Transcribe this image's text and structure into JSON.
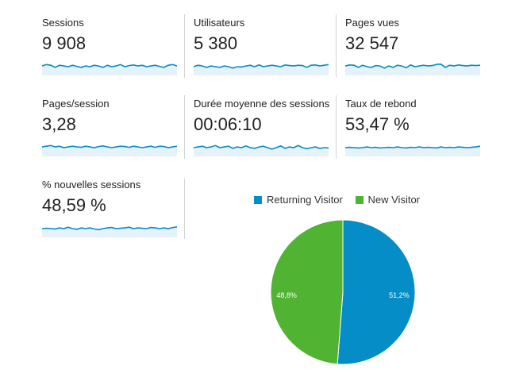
{
  "metrics": [
    {
      "label": "Sessions",
      "value": "9 908",
      "trend": [
        0.55,
        0.65,
        0.6,
        0.45,
        0.6,
        0.55,
        0.5,
        0.6,
        0.52,
        0.45,
        0.55,
        0.5,
        0.6,
        0.55,
        0.45,
        0.6,
        0.5,
        0.55,
        0.65,
        0.5,
        0.58,
        0.62,
        0.55,
        0.6,
        0.5,
        0.55,
        0.6,
        0.52,
        0.45,
        0.6,
        0.65,
        0.55
      ]
    },
    {
      "label": "Utilisateurs",
      "value": "5 380",
      "trend": [
        0.5,
        0.6,
        0.55,
        0.45,
        0.55,
        0.5,
        0.45,
        0.55,
        0.5,
        0.4,
        0.5,
        0.48,
        0.55,
        0.6,
        0.5,
        0.62,
        0.5,
        0.55,
        0.6,
        0.55,
        0.5,
        0.62,
        0.58,
        0.55,
        0.6,
        0.58,
        0.45,
        0.6,
        0.62,
        0.55,
        0.6,
        0.65
      ]
    },
    {
      "label": "Pages vues",
      "value": "32 547",
      "trend": [
        0.55,
        0.62,
        0.6,
        0.45,
        0.6,
        0.5,
        0.45,
        0.58,
        0.55,
        0.4,
        0.55,
        0.45,
        0.6,
        0.55,
        0.42,
        0.62,
        0.5,
        0.55,
        0.6,
        0.55,
        0.58,
        0.66,
        0.68,
        0.45,
        0.6,
        0.55,
        0.62,
        0.58,
        0.55,
        0.6,
        0.58,
        0.6
      ]
    },
    {
      "label": "Pages/session",
      "value": "3,28",
      "trend": [
        0.55,
        0.6,
        0.65,
        0.55,
        0.6,
        0.5,
        0.55,
        0.6,
        0.55,
        0.52,
        0.6,
        0.55,
        0.5,
        0.58,
        0.62,
        0.55,
        0.5,
        0.55,
        0.6,
        0.58,
        0.52,
        0.6,
        0.55,
        0.5,
        0.55,
        0.6,
        0.52,
        0.6,
        0.58,
        0.5,
        0.55,
        0.6
      ]
    },
    {
      "label": "Durée moyenne des sessions",
      "value": "00:06:10",
      "trend": [
        0.5,
        0.55,
        0.6,
        0.5,
        0.55,
        0.65,
        0.5,
        0.55,
        0.6,
        0.45,
        0.55,
        0.5,
        0.62,
        0.5,
        0.45,
        0.55,
        0.6,
        0.5,
        0.4,
        0.5,
        0.62,
        0.45,
        0.55,
        0.5,
        0.65,
        0.5,
        0.42,
        0.5,
        0.55,
        0.45,
        0.5,
        0.48
      ]
    },
    {
      "label": "Taux de rebond",
      "value": "53,47 %",
      "trend": [
        0.5,
        0.52,
        0.5,
        0.48,
        0.5,
        0.55,
        0.5,
        0.52,
        0.48,
        0.5,
        0.52,
        0.5,
        0.55,
        0.5,
        0.48,
        0.52,
        0.5,
        0.55,
        0.5,
        0.52,
        0.5,
        0.48,
        0.55,
        0.5,
        0.52,
        0.5,
        0.55,
        0.52,
        0.5,
        0.52,
        0.55,
        0.6
      ]
    },
    {
      "label": "% nouvelles sessions",
      "value": "48,59 %",
      "trend": [
        0.5,
        0.52,
        0.5,
        0.48,
        0.55,
        0.5,
        0.6,
        0.5,
        0.45,
        0.55,
        0.5,
        0.55,
        0.48,
        0.42,
        0.5,
        0.55,
        0.58,
        0.5,
        0.52,
        0.55,
        0.6,
        0.5,
        0.55,
        0.52,
        0.5,
        0.58,
        0.55,
        0.5,
        0.55,
        0.5,
        0.58,
        0.62
      ]
    }
  ],
  "colors": {
    "spark_line": "#058dc7",
    "spark_fill": "#e6f2fa",
    "returning": "#058dc7",
    "new": "#50b432",
    "slice_text": "#ffffff",
    "slice_border": "#ffffff"
  },
  "chart_data": {
    "type": "pie",
    "title": "",
    "legend_position": "top",
    "slices": [
      {
        "name": "Returning Visitor",
        "value": 51.2,
        "label": "51,2%",
        "color": "#058dc7"
      },
      {
        "name": "New Visitor",
        "value": 48.8,
        "label": "48,8%",
        "color": "#50b432"
      }
    ]
  }
}
